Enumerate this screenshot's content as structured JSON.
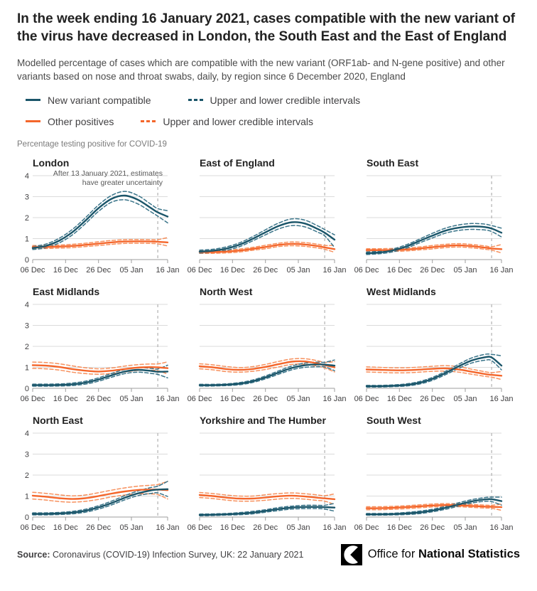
{
  "header": {
    "title": "In the week ending 16 January 2021, cases compatible with the new variant of the virus have decreased in London, the South East and the East of England",
    "subtitle": "Modelled percentage of cases which are compatible with the new variant (ORF1ab- and N-gene positive) and other variants based on nose and throat swabs, daily, by region since 6 December 2020, England"
  },
  "legend": {
    "row1": [
      {
        "label": "New variant compatible",
        "swatch": "solid-dark"
      },
      {
        "label": "Upper and lower credible intervals",
        "swatch": "dashed-dark"
      }
    ],
    "row2": [
      {
        "label": "Other positives",
        "swatch": "solid-orange"
      },
      {
        "label": "Upper and lower credible intervals",
        "swatch": "dashed-orange"
      }
    ]
  },
  "axis_caption": "Percentage testing positive for COVID-19",
  "chart_data": {
    "type": "line",
    "title": "Percentage testing positive for COVID-19",
    "ylim": [
      0,
      4
    ],
    "y_ticks": [
      0,
      1,
      2,
      3,
      4
    ],
    "x_tick_days": [
      0,
      10,
      20,
      30,
      41
    ],
    "x_tick_labels": [
      "06 Dec",
      "16 Dec",
      "26 Dec",
      "05 Jan",
      "16 Jan"
    ],
    "uncertainty_line_day": 38,
    "days": [
      0,
      4,
      8,
      12,
      16,
      20,
      24,
      28,
      32,
      36,
      38,
      41
    ],
    "annotation": {
      "region": "London",
      "line1": "After 13 January 2021, estimates",
      "line2": "have greater uncertainty"
    },
    "colors": {
      "new_variant": "#1A5569",
      "new_variant_interval": "#3A7489",
      "other_positives": "#F4662B",
      "other_positives_interval": "#F7915E",
      "gridline": "#DBDBDB",
      "axis": "#9E9E9E",
      "tick_label": "#414042",
      "uncertainty_line": "#B0B0B0"
    },
    "regions": [
      {
        "name": "London",
        "show_y_labels": true,
        "new_variant": [
          0.55,
          0.65,
          0.9,
          1.3,
          1.85,
          2.45,
          2.9,
          3.05,
          2.85,
          2.45,
          2.25,
          2.05
        ],
        "new_variant_upper": [
          0.62,
          0.74,
          1.01,
          1.43,
          1.99,
          2.6,
          3.06,
          3.25,
          3.05,
          2.63,
          2.43,
          2.33
        ],
        "new_variant_lower": [
          0.48,
          0.56,
          0.79,
          1.17,
          1.71,
          2.3,
          2.74,
          2.85,
          2.65,
          2.27,
          2.07,
          1.75
        ],
        "other": [
          0.6,
          0.6,
          0.62,
          0.65,
          0.7,
          0.76,
          0.82,
          0.86,
          0.87,
          0.86,
          0.85,
          0.82
        ],
        "other_upper": [
          0.67,
          0.67,
          0.69,
          0.73,
          0.78,
          0.85,
          0.91,
          0.95,
          0.96,
          0.95,
          0.95,
          1.05
        ],
        "other_lower": [
          0.53,
          0.53,
          0.55,
          0.57,
          0.62,
          0.67,
          0.73,
          0.77,
          0.78,
          0.77,
          0.75,
          0.65
        ]
      },
      {
        "name": "East of England",
        "show_y_labels": false,
        "new_variant": [
          0.38,
          0.42,
          0.52,
          0.7,
          0.98,
          1.3,
          1.6,
          1.78,
          1.72,
          1.45,
          1.28,
          0.95
        ],
        "new_variant_upper": [
          0.45,
          0.49,
          0.6,
          0.79,
          1.08,
          1.42,
          1.74,
          1.94,
          1.88,
          1.6,
          1.43,
          1.18
        ],
        "new_variant_lower": [
          0.31,
          0.35,
          0.44,
          0.61,
          0.88,
          1.18,
          1.46,
          1.62,
          1.56,
          1.3,
          1.13,
          0.58
        ],
        "other": [
          0.36,
          0.36,
          0.38,
          0.43,
          0.51,
          0.6,
          0.7,
          0.75,
          0.72,
          0.64,
          0.58,
          0.5
        ],
        "other_upper": [
          0.42,
          0.42,
          0.44,
          0.5,
          0.58,
          0.68,
          0.78,
          0.84,
          0.81,
          0.73,
          0.67,
          0.68
        ],
        "other_lower": [
          0.3,
          0.3,
          0.32,
          0.36,
          0.44,
          0.52,
          0.62,
          0.66,
          0.63,
          0.55,
          0.49,
          0.35
        ]
      },
      {
        "name": "South East",
        "show_y_labels": false,
        "new_variant": [
          0.3,
          0.34,
          0.44,
          0.62,
          0.88,
          1.14,
          1.38,
          1.52,
          1.58,
          1.55,
          1.48,
          1.28
        ],
        "new_variant_upper": [
          0.36,
          0.4,
          0.51,
          0.7,
          0.97,
          1.25,
          1.5,
          1.65,
          1.72,
          1.69,
          1.62,
          1.5
        ],
        "new_variant_lower": [
          0.24,
          0.28,
          0.37,
          0.54,
          0.79,
          1.03,
          1.26,
          1.39,
          1.44,
          1.41,
          1.34,
          1.08
        ],
        "other": [
          0.45,
          0.45,
          0.46,
          0.48,
          0.53,
          0.59,
          0.65,
          0.68,
          0.64,
          0.57,
          0.53,
          0.5
        ],
        "other_upper": [
          0.52,
          0.52,
          0.53,
          0.55,
          0.6,
          0.67,
          0.73,
          0.76,
          0.72,
          0.65,
          0.61,
          0.72
        ],
        "other_lower": [
          0.38,
          0.38,
          0.39,
          0.41,
          0.46,
          0.51,
          0.57,
          0.6,
          0.56,
          0.49,
          0.45,
          0.32
        ]
      },
      {
        "name": "East Midlands",
        "show_y_labels": true,
        "new_variant": [
          0.15,
          0.15,
          0.16,
          0.19,
          0.27,
          0.42,
          0.62,
          0.8,
          0.88,
          0.83,
          0.79,
          0.8
        ],
        "new_variant_upper": [
          0.2,
          0.2,
          0.21,
          0.25,
          0.34,
          0.5,
          0.71,
          0.9,
          0.99,
          0.95,
          0.92,
          1.1
        ],
        "new_variant_lower": [
          0.1,
          0.1,
          0.11,
          0.13,
          0.2,
          0.34,
          0.53,
          0.7,
          0.77,
          0.71,
          0.66,
          0.5
        ],
        "other": [
          1.1,
          1.08,
          1.02,
          0.92,
          0.84,
          0.8,
          0.84,
          0.92,
          0.99,
          1.01,
          1.0,
          0.96
        ],
        "other_upper": [
          1.25,
          1.23,
          1.17,
          1.07,
          0.98,
          0.93,
          0.97,
          1.06,
          1.13,
          1.16,
          1.16,
          1.26
        ],
        "other_lower": [
          0.95,
          0.93,
          0.87,
          0.77,
          0.7,
          0.67,
          0.71,
          0.78,
          0.85,
          0.86,
          0.84,
          0.68
        ]
      },
      {
        "name": "North West",
        "show_y_labels": false,
        "new_variant": [
          0.15,
          0.15,
          0.17,
          0.22,
          0.33,
          0.52,
          0.75,
          0.97,
          1.1,
          1.14,
          1.13,
          1.08
        ],
        "new_variant_upper": [
          0.19,
          0.19,
          0.21,
          0.27,
          0.39,
          0.59,
          0.83,
          1.06,
          1.2,
          1.25,
          1.24,
          1.35
        ],
        "new_variant_lower": [
          0.11,
          0.11,
          0.13,
          0.17,
          0.27,
          0.45,
          0.67,
          0.88,
          1.0,
          1.03,
          1.02,
          0.84
        ],
        "other": [
          1.05,
          1.0,
          0.92,
          0.88,
          0.92,
          1.02,
          1.15,
          1.27,
          1.28,
          1.18,
          1.1,
          1.0
        ],
        "other_upper": [
          1.17,
          1.12,
          1.04,
          0.99,
          1.03,
          1.14,
          1.28,
          1.4,
          1.41,
          1.31,
          1.23,
          1.27
        ],
        "other_lower": [
          0.93,
          0.88,
          0.8,
          0.77,
          0.81,
          0.9,
          1.02,
          1.14,
          1.15,
          1.05,
          0.97,
          0.78
        ]
      },
      {
        "name": "West Midlands",
        "show_y_labels": false,
        "new_variant": [
          0.1,
          0.1,
          0.12,
          0.16,
          0.26,
          0.45,
          0.73,
          1.05,
          1.33,
          1.48,
          1.47,
          1.08
        ],
        "new_variant_upper": [
          0.14,
          0.14,
          0.16,
          0.21,
          0.32,
          0.52,
          0.81,
          1.15,
          1.45,
          1.62,
          1.62,
          1.55
        ],
        "new_variant_lower": [
          0.06,
          0.06,
          0.08,
          0.11,
          0.2,
          0.38,
          0.65,
          0.95,
          1.21,
          1.34,
          1.32,
          0.88
        ],
        "other": [
          0.9,
          0.88,
          0.86,
          0.86,
          0.89,
          0.93,
          0.95,
          0.9,
          0.79,
          0.68,
          0.64,
          0.6
        ],
        "other_upper": [
          1.02,
          1.0,
          0.98,
          0.98,
          1.01,
          1.05,
          1.08,
          1.03,
          0.91,
          0.79,
          0.75,
          0.8
        ],
        "other_lower": [
          0.78,
          0.76,
          0.74,
          0.74,
          0.77,
          0.81,
          0.82,
          0.77,
          0.67,
          0.57,
          0.53,
          0.42
        ]
      },
      {
        "name": "North East",
        "show_y_labels": true,
        "new_variant": [
          0.15,
          0.15,
          0.17,
          0.21,
          0.3,
          0.46,
          0.67,
          0.92,
          1.13,
          1.27,
          1.31,
          1.33
        ],
        "new_variant_upper": [
          0.2,
          0.2,
          0.22,
          0.27,
          0.37,
          0.54,
          0.76,
          1.02,
          1.24,
          1.41,
          1.47,
          1.7
        ],
        "new_variant_lower": [
          0.1,
          0.1,
          0.12,
          0.15,
          0.23,
          0.38,
          0.58,
          0.82,
          1.02,
          1.13,
          1.15,
          0.98
        ],
        "other": [
          1.02,
          0.97,
          0.9,
          0.86,
          0.9,
          1.0,
          1.12,
          1.22,
          1.29,
          1.31,
          1.31,
          1.28
        ],
        "other_upper": [
          1.18,
          1.13,
          1.06,
          1.01,
          1.05,
          1.16,
          1.28,
          1.39,
          1.47,
          1.52,
          1.55,
          1.7
        ],
        "other_lower": [
          0.86,
          0.81,
          0.74,
          0.71,
          0.75,
          0.84,
          0.96,
          1.05,
          1.11,
          1.1,
          1.07,
          0.86
        ]
      },
      {
        "name": "Yorkshire and The Humber",
        "show_y_labels": false,
        "new_variant": [
          0.1,
          0.11,
          0.13,
          0.16,
          0.21,
          0.29,
          0.38,
          0.45,
          0.48,
          0.48,
          0.47,
          0.45
        ],
        "new_variant_upper": [
          0.14,
          0.15,
          0.17,
          0.21,
          0.27,
          0.35,
          0.45,
          0.52,
          0.56,
          0.56,
          0.56,
          0.65
        ],
        "new_variant_lower": [
          0.06,
          0.07,
          0.09,
          0.11,
          0.15,
          0.23,
          0.31,
          0.38,
          0.4,
          0.4,
          0.38,
          0.28
        ],
        "other": [
          1.05,
          1.0,
          0.93,
          0.88,
          0.88,
          0.93,
          0.99,
          1.02,
          0.98,
          0.92,
          0.89,
          0.85
        ],
        "other_upper": [
          1.17,
          1.12,
          1.05,
          1.0,
          1.0,
          1.06,
          1.12,
          1.15,
          1.11,
          1.05,
          1.02,
          1.1
        ],
        "other_lower": [
          0.93,
          0.88,
          0.81,
          0.76,
          0.76,
          0.8,
          0.86,
          0.89,
          0.85,
          0.79,
          0.76,
          0.6
        ]
      },
      {
        "name": "South West",
        "show_y_labels": false,
        "new_variant": [
          0.13,
          0.13,
          0.14,
          0.17,
          0.22,
          0.31,
          0.44,
          0.6,
          0.75,
          0.84,
          0.85,
          0.76
        ],
        "new_variant_upper": [
          0.17,
          0.17,
          0.18,
          0.22,
          0.28,
          0.37,
          0.51,
          0.68,
          0.83,
          0.93,
          0.95,
          0.95
        ],
        "new_variant_lower": [
          0.09,
          0.09,
          0.1,
          0.12,
          0.16,
          0.25,
          0.37,
          0.52,
          0.67,
          0.75,
          0.74,
          0.57
        ],
        "other": [
          0.42,
          0.42,
          0.44,
          0.47,
          0.51,
          0.55,
          0.57,
          0.56,
          0.53,
          0.5,
          0.49,
          0.47
        ],
        "other_upper": [
          0.49,
          0.49,
          0.51,
          0.54,
          0.58,
          0.62,
          0.64,
          0.63,
          0.6,
          0.57,
          0.56,
          0.62
        ],
        "other_lower": [
          0.35,
          0.35,
          0.37,
          0.4,
          0.44,
          0.48,
          0.5,
          0.49,
          0.46,
          0.43,
          0.42,
          0.32
        ]
      }
    ]
  },
  "footer": {
    "source_label": "Source:",
    "source_text": " Coronavirus (COVID-19) Infection Survey, UK: 22 January 2021",
    "logo_regular": "Office for ",
    "logo_bold": "National Statistics"
  }
}
